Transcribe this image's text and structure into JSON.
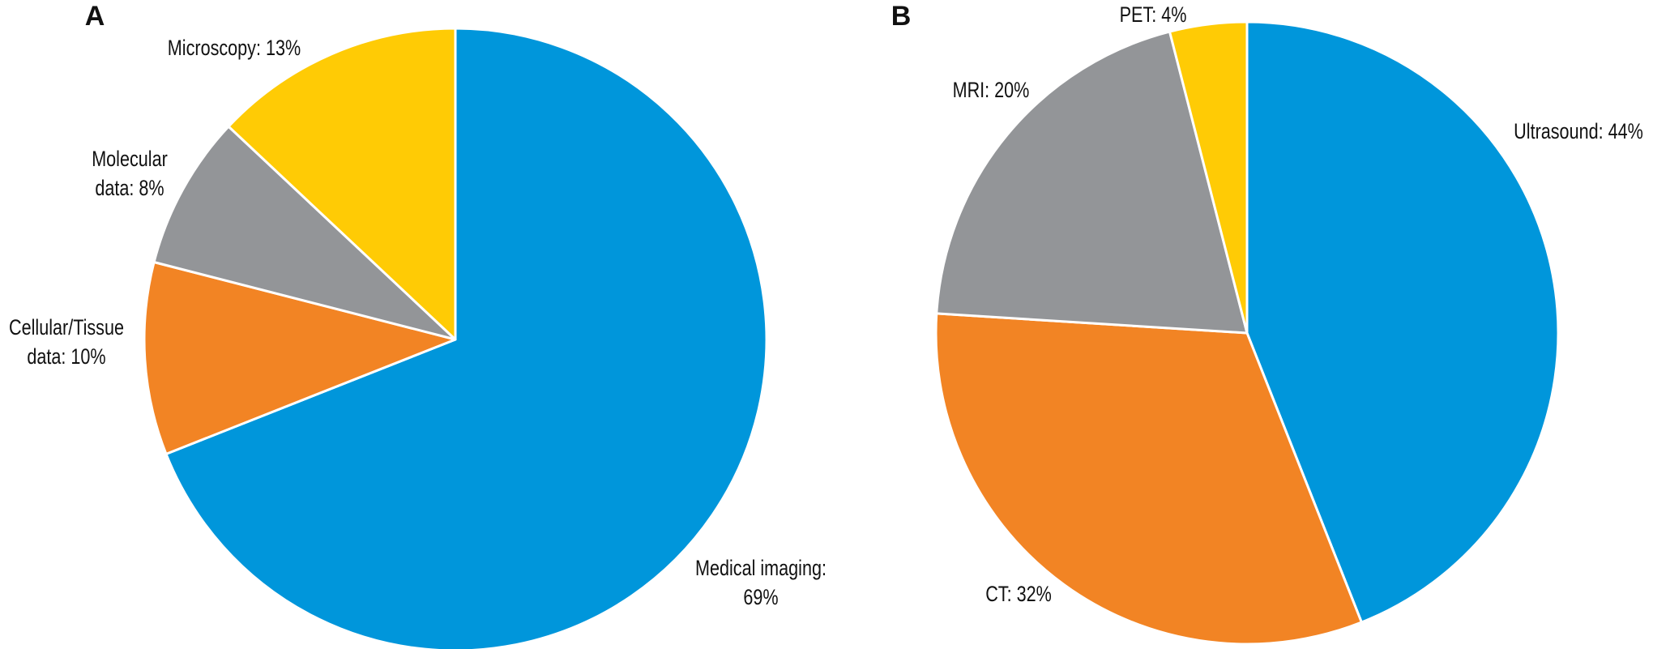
{
  "chart_data": [
    {
      "type": "pie",
      "title": "A",
      "categories": [
        "Medical imaging",
        "Cellular/Tissue data",
        "Molecular data",
        "Microscopy"
      ],
      "labels": [
        [
          "Medical imaging:",
          "69%"
        ],
        [
          "Cellular/Tissue",
          "data: 10%"
        ],
        [
          "Molecular",
          "data: 8%"
        ],
        [
          "Microscopy: 13%"
        ]
      ],
      "values": [
        69,
        10,
        8,
        13
      ],
      "colors": [
        "#0096db",
        "#f28424",
        "#939598",
        "#ffcb05"
      ]
    },
    {
      "type": "pie",
      "title": "B",
      "categories": [
        "Ultrasound",
        "CT",
        "MRI",
        "PET"
      ],
      "labels": [
        [
          "Ultrasound: 44%"
        ],
        [
          "CT: 32%"
        ],
        [
          "MRI: 20%"
        ],
        [
          "PET: 4%"
        ]
      ],
      "values": [
        44,
        32,
        20,
        4
      ],
      "colors": [
        "#0096db",
        "#f28424",
        "#939598",
        "#ffcb05"
      ]
    }
  ]
}
